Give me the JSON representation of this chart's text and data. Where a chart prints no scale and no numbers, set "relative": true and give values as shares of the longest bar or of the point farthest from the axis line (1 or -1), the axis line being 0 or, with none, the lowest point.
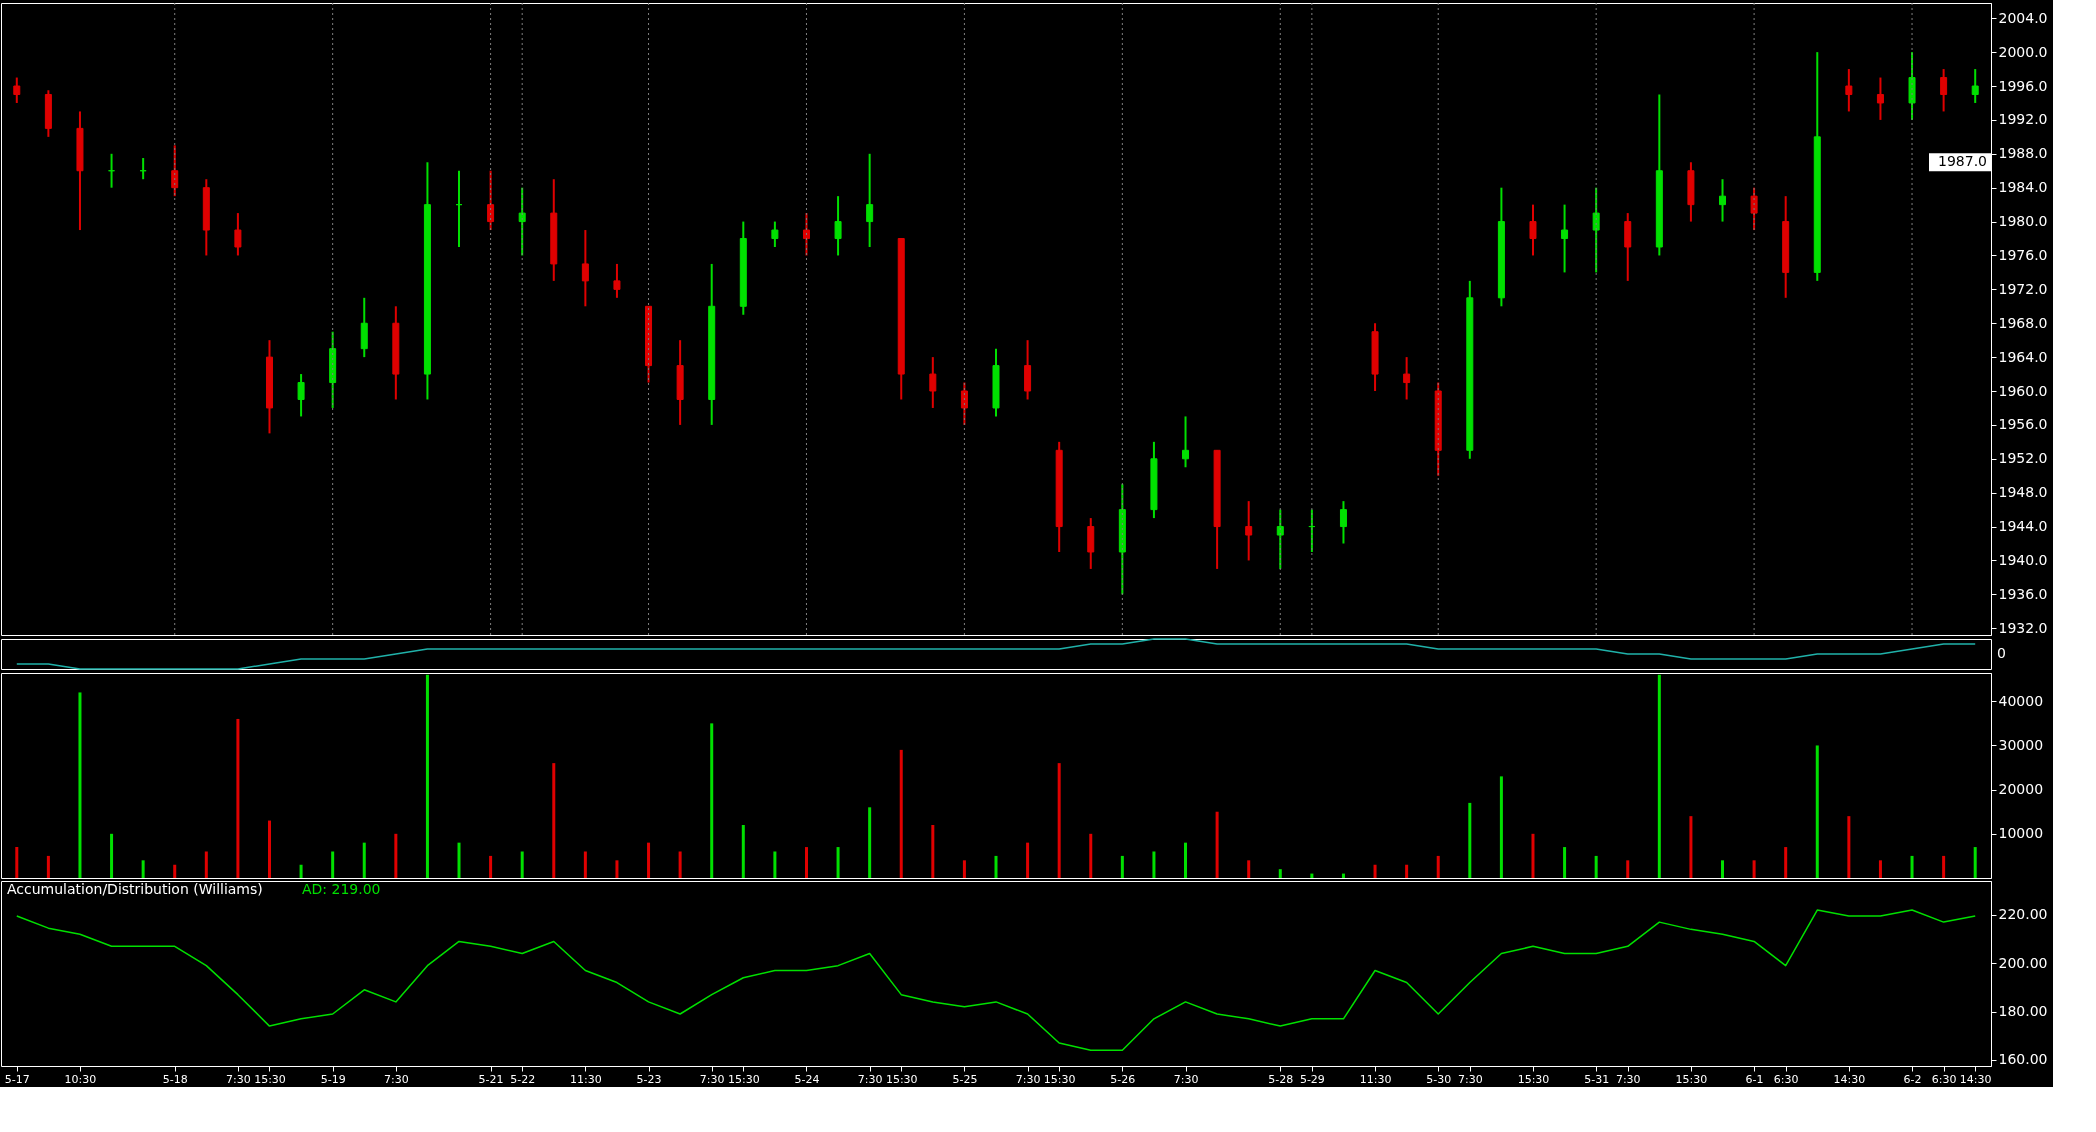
{
  "chart_data": [
    {
      "type": "candlestick",
      "categories": [
        "5-17",
        null,
        "10:30",
        null,
        null,
        "5-18",
        null,
        "7:30",
        "15:30",
        null,
        "5-19",
        null,
        "7:30",
        null,
        null,
        "5-21",
        "5-22",
        null,
        "11:30",
        null,
        "5-23",
        null,
        "7:30",
        "15:30",
        null,
        "5-24",
        null,
        "7:30",
        "15:30",
        null,
        "5-25",
        null,
        "7:30",
        "15:30",
        null,
        "5-26",
        null,
        "7:30",
        null,
        null,
        "5-28",
        "5-29",
        null,
        "11:30",
        null,
        "5-30",
        "7:30",
        null,
        "15:30",
        null,
        "5-31",
        "7:30",
        null,
        "15:30",
        null,
        "6-1",
        "6:30",
        null,
        "14:30",
        null,
        "6-2",
        "6:30",
        "14:30"
      ],
      "ohlc": [
        [
          1996,
          1997,
          1994,
          1995
        ],
        [
          1995,
          1995.5,
          1990,
          1991
        ],
        [
          1991,
          1993,
          1979,
          1986
        ],
        [
          1986,
          1988,
          1984,
          1986
        ],
        [
          1986,
          1987.5,
          1985,
          1986
        ],
        [
          1986,
          1989,
          1983,
          1984
        ],
        [
          1984,
          1985,
          1976,
          1979
        ],
        [
          1979,
          1981,
          1976,
          1977
        ],
        [
          1964,
          1966,
          1955,
          1958
        ],
        [
          1959,
          1962,
          1957,
          1961
        ],
        [
          1961,
          1967,
          1958,
          1965
        ],
        [
          1965,
          1971,
          1964,
          1968
        ],
        [
          1968,
          1970,
          1959,
          1962
        ],
        [
          1962,
          1987,
          1959,
          1982
        ],
        [
          1982,
          1986,
          1977,
          1982
        ],
        [
          1982,
          1986,
          1979,
          1980
        ],
        [
          1980,
          1984,
          1976,
          1981
        ],
        [
          1981,
          1985,
          1973,
          1975
        ],
        [
          1975,
          1979,
          1970,
          1973
        ],
        [
          1973,
          1975,
          1971,
          1972
        ],
        [
          1970,
          1970,
          1961,
          1963
        ],
        [
          1963,
          1966,
          1956,
          1959
        ],
        [
          1959,
          1975,
          1956,
          1970
        ],
        [
          1970,
          1980,
          1969,
          1978
        ],
        [
          1978,
          1980,
          1977,
          1979
        ],
        [
          1979,
          1981,
          1976,
          1978
        ],
        [
          1978,
          1983,
          1976,
          1980
        ],
        [
          1980,
          1988,
          1977,
          1982
        ],
        [
          1978,
          1978,
          1959,
          1962
        ],
        [
          1962,
          1964,
          1958,
          1960
        ],
        [
          1960,
          1961,
          1956,
          1958
        ],
        [
          1958,
          1965,
          1957,
          1963
        ],
        [
          1963,
          1966,
          1959,
          1960
        ],
        [
          1953,
          1954,
          1941,
          1944
        ],
        [
          1944,
          1945,
          1939,
          1941
        ],
        [
          1941,
          1949,
          1936,
          1946
        ],
        [
          1946,
          1954,
          1945,
          1952
        ],
        [
          1952,
          1957,
          1951,
          1953
        ],
        [
          1953,
          1953,
          1939,
          1944
        ],
        [
          1944,
          1947,
          1940,
          1943
        ],
        [
          1943,
          1946,
          1939,
          1944
        ],
        [
          1944,
          1946,
          1941,
          1944
        ],
        [
          1944,
          1947,
          1942,
          1946
        ],
        [
          1967,
          1968,
          1960,
          1962
        ],
        [
          1962,
          1964,
          1959,
          1961
        ],
        [
          1960,
          1961,
          1950,
          1953
        ],
        [
          1953,
          1973,
          1952,
          1971
        ],
        [
          1971,
          1984,
          1970,
          1980
        ],
        [
          1980,
          1982,
          1976,
          1978
        ],
        [
          1978,
          1982,
          1974,
          1979
        ],
        [
          1979,
          1984,
          1974,
          1981
        ],
        [
          1980,
          1981,
          1973,
          1977
        ],
        [
          1977,
          1995,
          1976,
          1986
        ],
        [
          1986,
          1987,
          1980,
          1982
        ],
        [
          1982,
          1985,
          1980,
          1983
        ],
        [
          1983,
          1984,
          1979,
          1981
        ],
        [
          1980,
          1983,
          1971,
          1974
        ],
        [
          1974,
          2000,
          1973,
          1990
        ],
        [
          1996,
          1998,
          1993,
          1995
        ],
        [
          1995,
          1997,
          1992,
          1994
        ],
        [
          1994,
          2000,
          1992,
          1997
        ],
        [
          1997,
          1998,
          1993,
          1995
        ],
        [
          1995,
          1998,
          1994,
          1996
        ]
      ],
      "colors": [
        "#e00000",
        "#e00000",
        "#e00000",
        "#00e000",
        "#00e000",
        "#e00000",
        "#e00000",
        "#e00000",
        "#e00000",
        "#00e000",
        "#00e000",
        "#00e000",
        "#e00000",
        "#00e000",
        "#00e000",
        "#e00000",
        "#00e000",
        "#e00000",
        "#e00000",
        "#e00000",
        "#e00000",
        "#e00000",
        "#00e000",
        "#00e000",
        "#00e000",
        "#e00000",
        "#00e000",
        "#00e000",
        "#e00000",
        "#e00000",
        "#e00000",
        "#00e000",
        "#e00000",
        "#e00000",
        "#e00000",
        "#00e000",
        "#00e000",
        "#00e000",
        "#e00000",
        "#e00000",
        "#00e000",
        "#00e000",
        "#00e000",
        "#e00000",
        "#e00000",
        "#e00000",
        "#00e000",
        "#00e000",
        "#e00000",
        "#00e000",
        "#00e000",
        "#e00000",
        "#00e000",
        "#e00000",
        "#00e000",
        "#e00000",
        "#e00000",
        "#00e000",
        "#e00000",
        "#e00000",
        "#00e000",
        "#e00000",
        "#00e000"
      ],
      "ylim": [
        1931.2,
        2005.8
      ],
      "yticks": [
        {
          "value": 1932,
          "label": "1932.0"
        },
        {
          "value": 1936,
          "label": "1936.0"
        },
        {
          "value": 1940,
          "label": "1940.0"
        },
        {
          "value": 1944,
          "label": "1944.0"
        },
        {
          "value": 1948,
          "label": "1948.0"
        },
        {
          "value": 1952,
          "label": "1952.0"
        },
        {
          "value": 1956,
          "label": "1956.0"
        },
        {
          "value": 1960,
          "label": "1960.0"
        },
        {
          "value": 1964,
          "label": "1964.0"
        },
        {
          "value": 1968,
          "label": "1968.0"
        },
        {
          "value": 1972,
          "label": "1972.0"
        },
        {
          "value": 1976,
          "label": "1976.0"
        },
        {
          "value": 1980,
          "label": "1980.0"
        },
        {
          "value": 1984,
          "label": "1984.0"
        },
        {
          "value": 1988,
          "label": "1988.0"
        },
        {
          "value": 1992,
          "label": "1992.0"
        },
        {
          "value": 1996,
          "label": "1996.0"
        },
        {
          "value": 2000,
          "label": "2000.0"
        },
        {
          "value": 2004,
          "label": "2004.0"
        }
      ],
      "ref_lines": [
        {
          "axis": "y",
          "value": 1987,
          "label": "1987.0",
          "color": "#ffffff"
        },
        {
          "axis": "x",
          "value": "5-18",
          "line_style": "dotted",
          "color": "#808080"
        },
        {
          "axis": "x",
          "value": "5-19",
          "line_style": "dotted",
          "color": "#808080"
        },
        {
          "axis": "x",
          "value": "5-21",
          "line_style": "dotted",
          "color": "#808080"
        },
        {
          "axis": "x",
          "value": "5-22",
          "line_style": "dotted",
          "color": "#808080"
        },
        {
          "axis": "x",
          "value": "5-23",
          "line_style": "dotted",
          "color": "#808080"
        },
        {
          "axis": "x",
          "value": "5-24",
          "line_style": "dotted",
          "color": "#808080"
        },
        {
          "axis": "x",
          "value": "5-25",
          "line_style": "dotted",
          "color": "#808080"
        },
        {
          "axis": "x",
          "value": "5-26",
          "line_style": "dotted",
          "color": "#808080"
        },
        {
          "axis": "x",
          "value": "5-28",
          "line_style": "dotted",
          "color": "#808080"
        },
        {
          "axis": "x",
          "value": "5-29",
          "line_style": "dotted",
          "color": "#808080"
        },
        {
          "axis": "x",
          "value": "5-30",
          "line_style": "dotted",
          "color": "#808080"
        },
        {
          "axis": "x",
          "value": "5-31",
          "line_style": "dotted",
          "color": "#808080"
        },
        {
          "axis": "x",
          "value": "6-1",
          "line_style": "dotted",
          "color": "#808080"
        },
        {
          "axis": "x",
          "value": "6-2",
          "line_style": "dotted",
          "color": "#808080"
        }
      ],
      "tick_labels": "y"
    },
    {
      "type": "line",
      "relative": true,
      "annotations": [
        "0"
      ],
      "tick_labels": false,
      "series": [
        {
          "color": "#20b2aa",
          "values": [
            0.17,
            0.17,
            0,
            0,
            0,
            0,
            0,
            0,
            0.17,
            0.33,
            0.33,
            0.33,
            0.5,
            0.67,
            0.67,
            0.67,
            0.67,
            0.67,
            0.67,
            0.67,
            0.67,
            0.67,
            0.67,
            0.67,
            0.67,
            0.67,
            0.67,
            0.67,
            0.67,
            0.67,
            0.67,
            0.67,
            0.67,
            0.67,
            0.83,
            0.83,
            1,
            1,
            0.83,
            0.83,
            0.83,
            0.83,
            0.83,
            0.83,
            0.83,
            0.67,
            0.67,
            0.67,
            0.67,
            0.67,
            0.67,
            0.5,
            0.5,
            0.33,
            0.33,
            0.33,
            0.33,
            0.5,
            0.5,
            0.5,
            0.67,
            0.83,
            0.83
          ]
        }
      ]
    },
    {
      "type": "bar",
      "tick_labels": "y",
      "ylim": [
        0,
        46400
      ],
      "yticks": [
        10000,
        20000,
        30000,
        40000
      ],
      "values": [
        7000,
        5000,
        42000,
        10000,
        4000,
        3000,
        6000,
        36000,
        13000,
        3000,
        6000,
        8000,
        10000,
        46000,
        8000,
        5000,
        6000,
        26000,
        6000,
        4000,
        8000,
        6000,
        35000,
        12000,
        6000,
        7000,
        7000,
        16000,
        29000,
        12000,
        4000,
        5000,
        8000,
        26000,
        10000,
        5000,
        6000,
        8000,
        15000,
        4000,
        2000,
        1000,
        1000,
        3000,
        3000,
        5000,
        17000,
        23000,
        10000,
        7000,
        5000,
        4000,
        46000,
        14000,
        4000,
        4000,
        7000,
        30000,
        14000,
        4000,
        5000,
        5000,
        7000
      ],
      "colors": [
        "#e00000",
        "#e00000",
        "#00e000",
        "#00e000",
        "#00e000",
        "#e00000",
        "#e00000",
        "#e00000",
        "#e00000",
        "#00e000",
        "#00e000",
        "#00e000",
        "#e00000",
        "#00e000",
        "#00e000",
        "#e00000",
        "#00e000",
        "#e00000",
        "#e00000",
        "#e00000",
        "#e00000",
        "#e00000",
        "#00e000",
        "#00e000",
        "#00e000",
        "#e00000",
        "#00e000",
        "#00e000",
        "#e00000",
        "#e00000",
        "#e00000",
        "#00e000",
        "#e00000",
        "#e00000",
        "#e00000",
        "#00e000",
        "#00e000",
        "#00e000",
        "#e00000",
        "#e00000",
        "#00e000",
        "#00e000",
        "#00e000",
        "#e00000",
        "#e00000",
        "#e00000",
        "#00e000",
        "#00e000",
        "#e00000",
        "#00e000",
        "#00e000",
        "#e00000",
        "#00e000",
        "#e00000",
        "#00e000",
        "#e00000",
        "#e00000",
        "#00e000",
        "#e00000",
        "#e00000",
        "#00e000",
        "#e00000",
        "#00e000"
      ]
    },
    {
      "type": "line",
      "title": "Accumulation/Distribution (Williams)",
      "annotations": [
        "AD: 219.00"
      ],
      "ylim": [
        157.5,
        234
      ],
      "yticks": [
        {
          "value": 160,
          "label": "160.00"
        },
        {
          "value": 180,
          "label": "180.00"
        },
        {
          "value": 200,
          "label": "200.00"
        },
        {
          "value": 220,
          "label": "220.00"
        }
      ],
      "series": [
        {
          "color": "#00e000",
          "values": [
            219.5,
            214.5,
            212,
            207,
            207,
            207,
            199,
            187,
            174,
            177,
            179,
            189,
            184,
            199,
            209,
            207,
            204,
            209,
            197,
            192,
            184,
            179,
            187,
            194,
            197,
            197,
            199,
            204,
            187,
            184,
            182,
            184,
            179,
            167,
            164,
            164,
            177,
            184,
            179,
            177,
            174,
            177,
            177,
            197,
            192,
            179,
            192,
            204,
            207,
            204,
            204,
            207,
            217,
            214,
            212,
            209,
            199,
            222,
            219.5,
            219.5,
            222,
            217,
            219.5
          ]
        }
      ]
    }
  ]
}
